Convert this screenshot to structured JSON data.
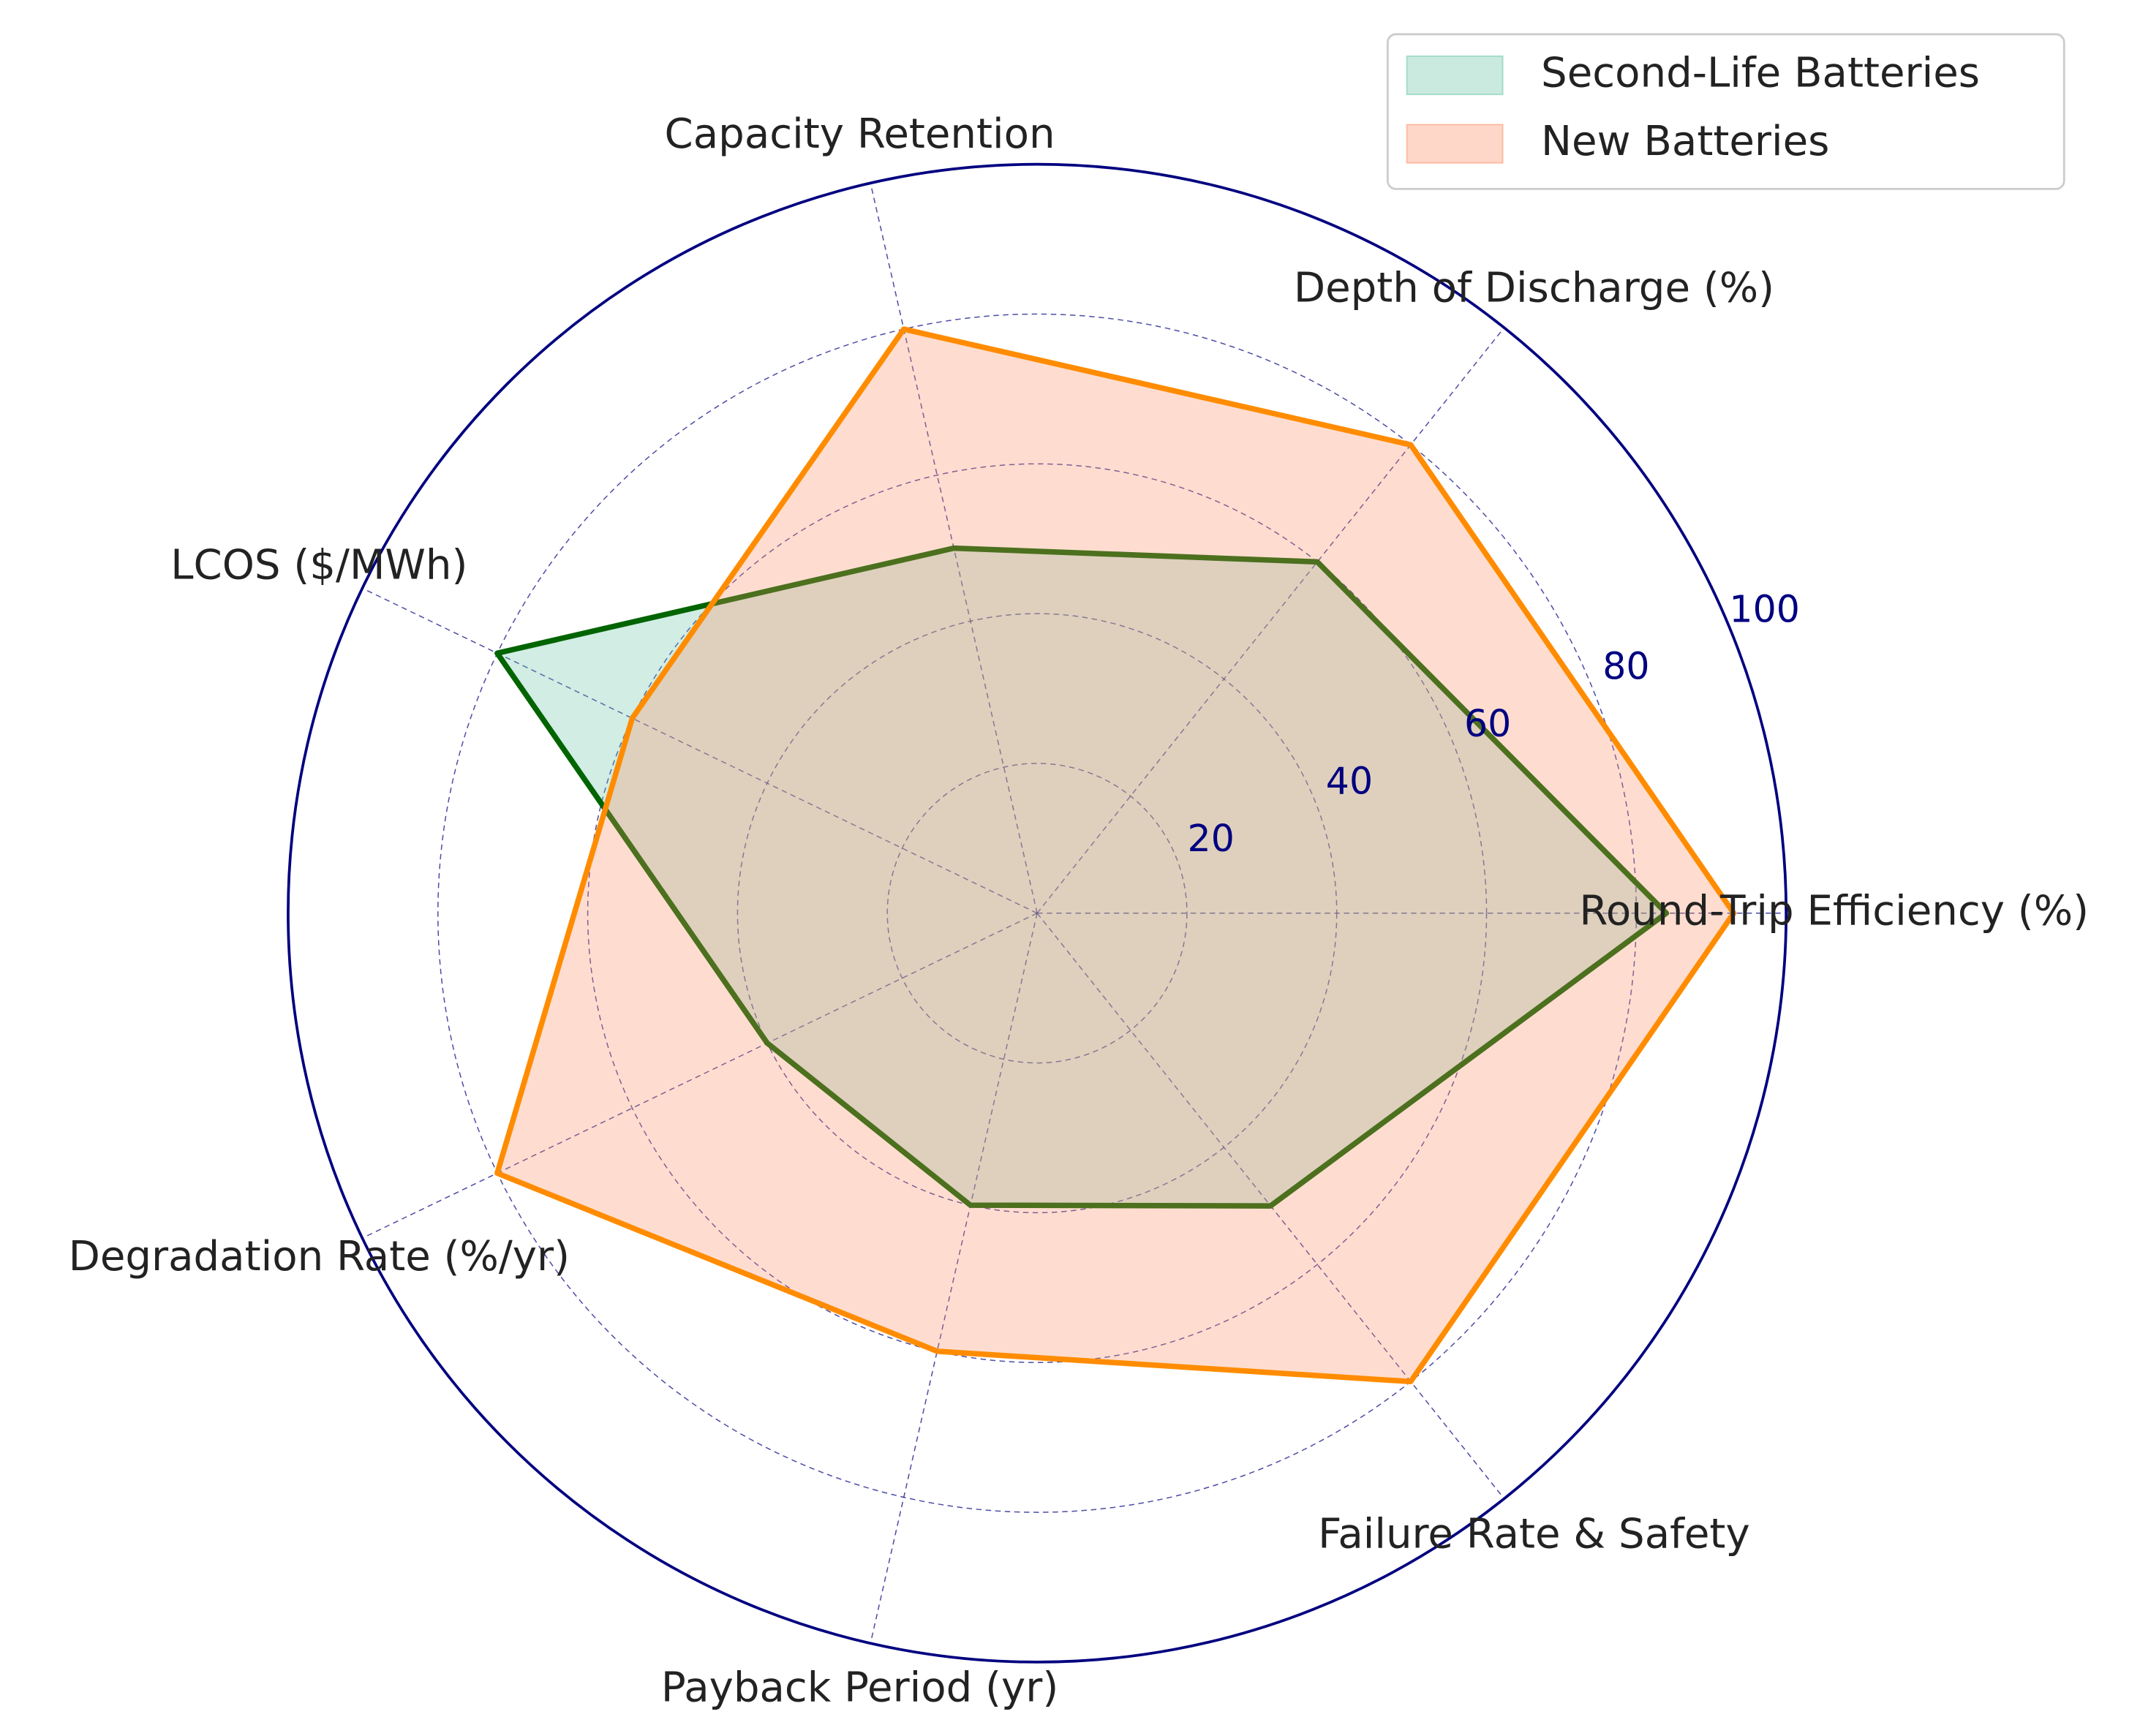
{
  "chart_data": {
    "type": "radar",
    "categories": [
      "Round-Trip Efficiency (%)",
      "Depth of Discharge (%)",
      "Capacity Retention",
      "LCOS ($/MWh)",
      "Degradation Rate (%/yr)",
      "Payback Period (yr)",
      "Failure Rate & Safety"
    ],
    "series": [
      {
        "name": "Second-Life Batteries",
        "color": "#006400",
        "fill_color": "#66c2a5",
        "values": [
          84,
          60,
          50,
          80,
          40,
          40,
          50
        ]
      },
      {
        "name": "New Batteries",
        "color": "#ff8c00",
        "fill_color": "#fc8d62",
        "values": [
          93,
          80,
          80,
          60,
          80,
          60,
          80
        ]
      }
    ],
    "ylim": [
      0,
      100
    ],
    "yticks": [
      20,
      40,
      60,
      80,
      100
    ],
    "grid": true,
    "axis_color": "#000080",
    "legend": "upper right"
  }
}
